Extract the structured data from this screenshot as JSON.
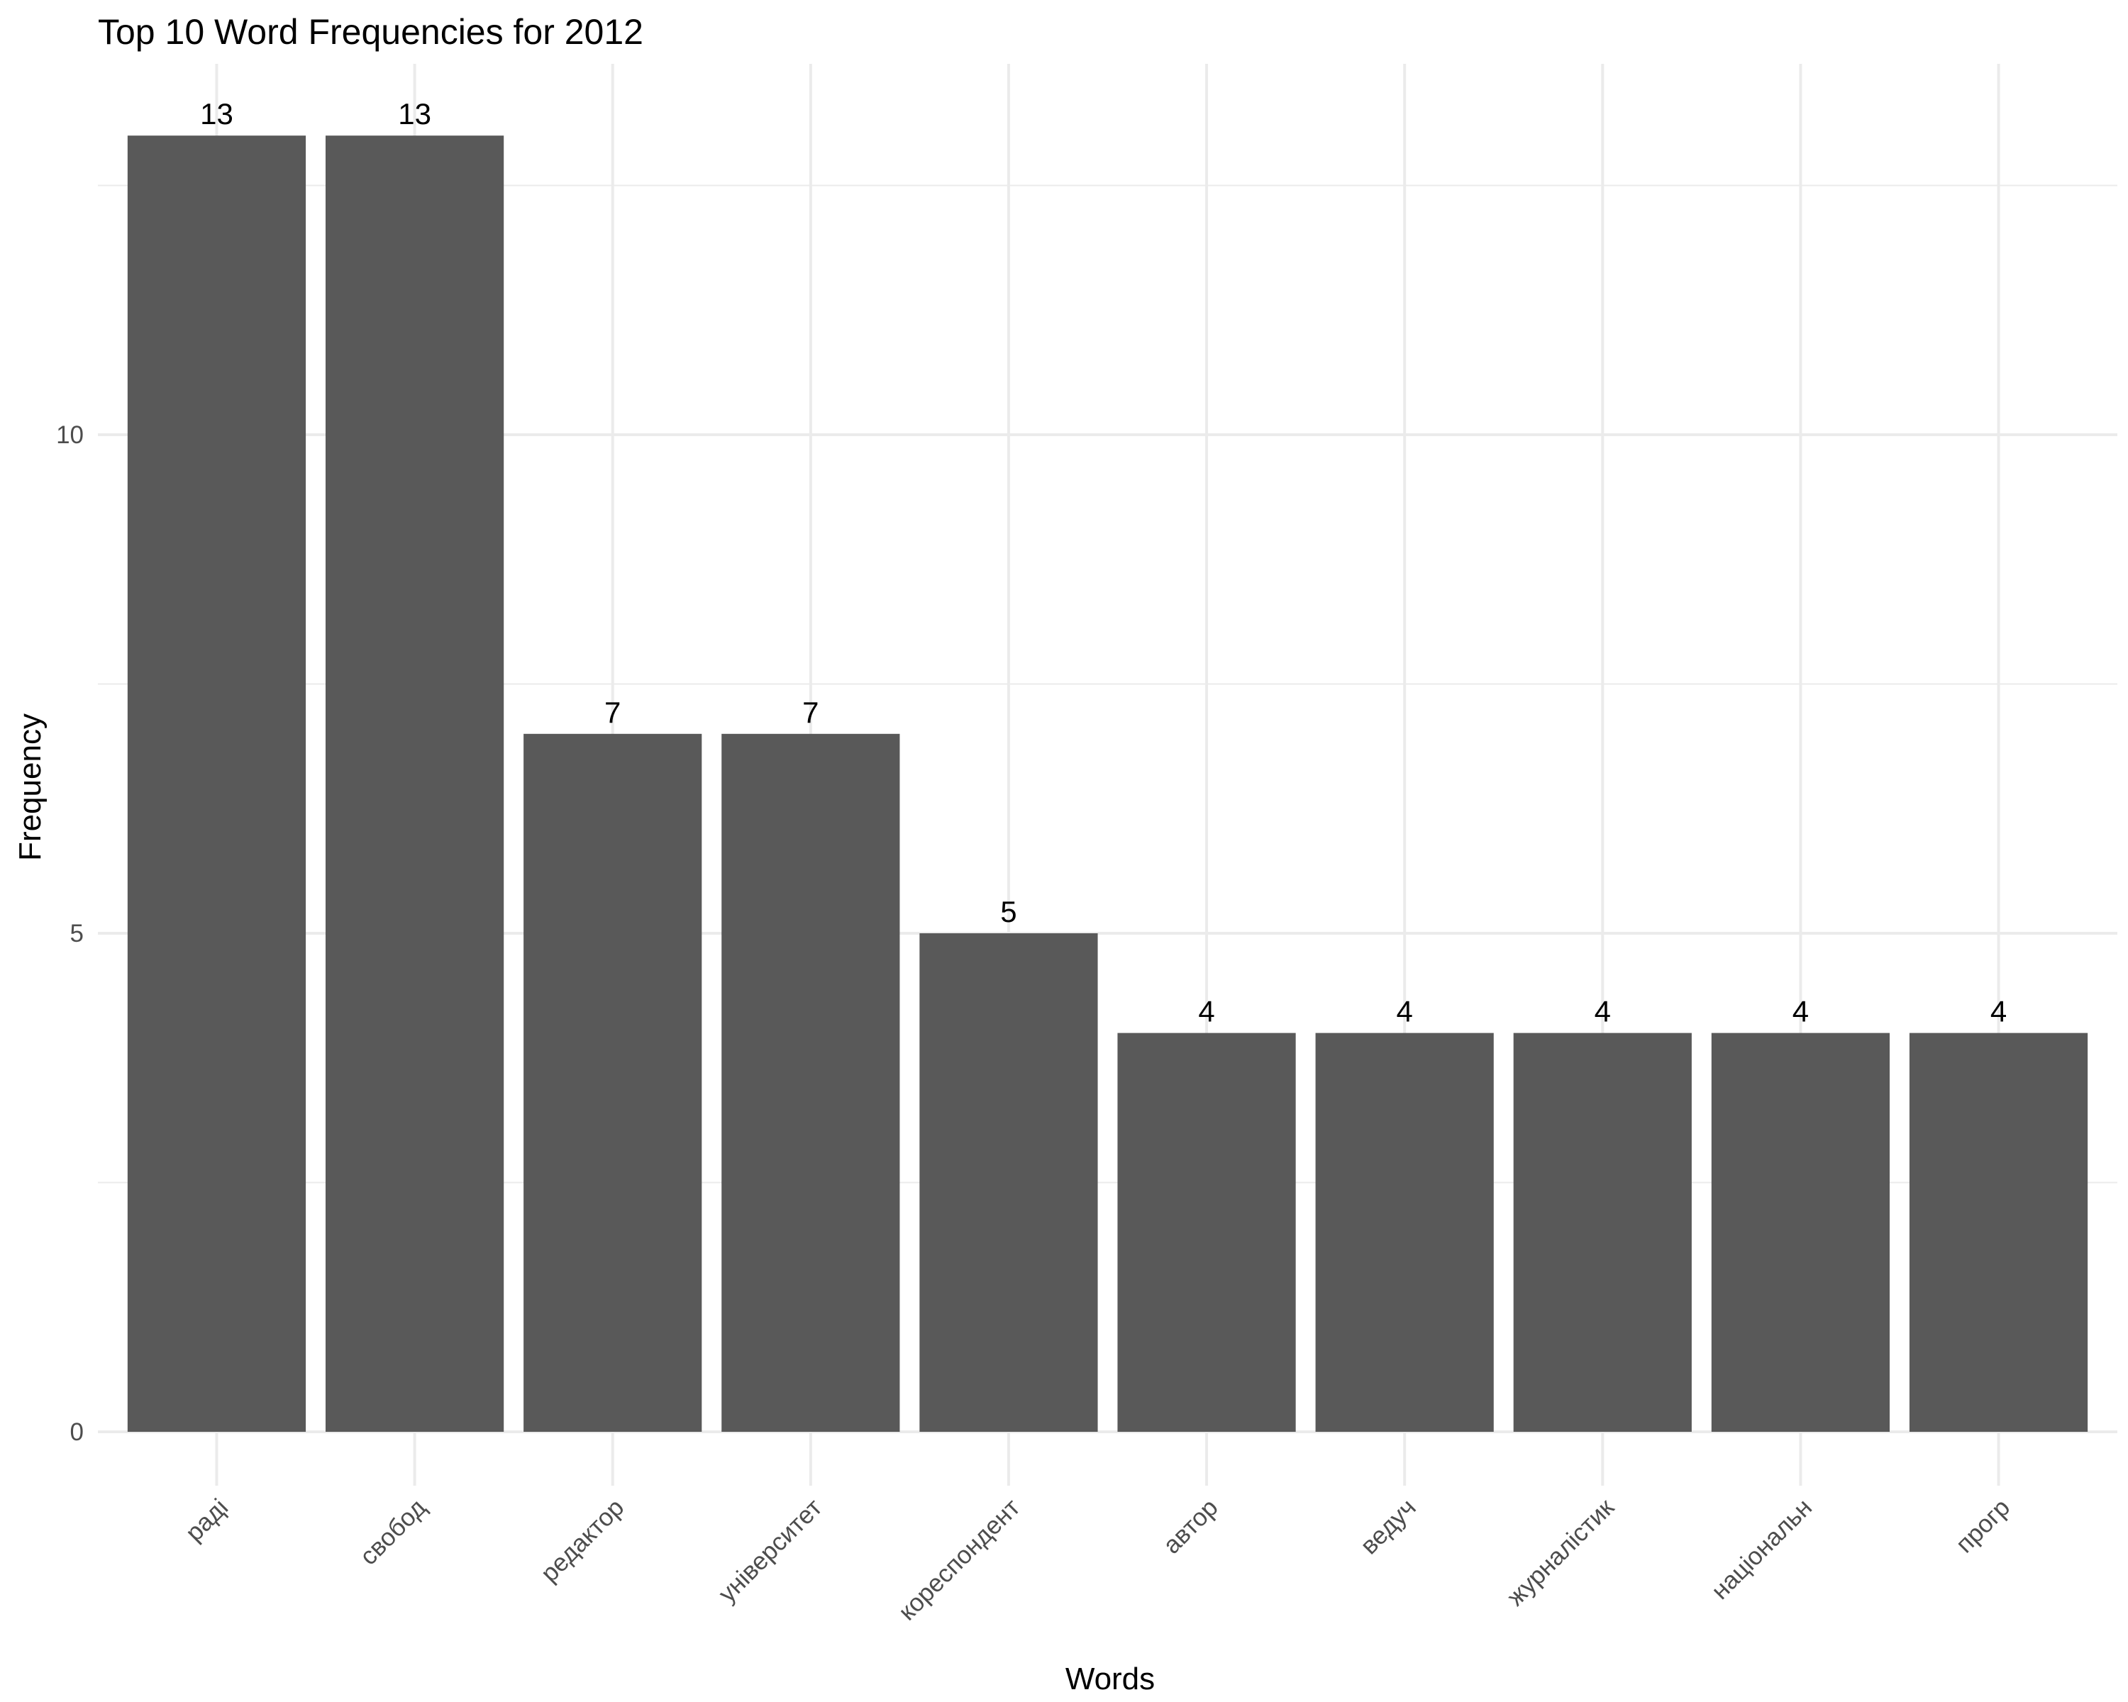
{
  "chart_data": {
    "type": "bar",
    "title": "Top 10 Word Frequencies for 2012",
    "xlabel": "Words",
    "ylabel": "Frequency",
    "categories": [
      "раді",
      "свобод",
      "редактор",
      "університет",
      "кореспондент",
      "автор",
      "ведуч",
      "журналістик",
      "національн",
      "прогр"
    ],
    "values": [
      13,
      13,
      7,
      7,
      5,
      4,
      4,
      4,
      4,
      4
    ],
    "value_labels": [
      "13",
      "13",
      "7",
      "7",
      "5",
      "4",
      "4",
      "4",
      "4",
      "4"
    ],
    "y_ticks": [
      0,
      5,
      10
    ],
    "y_tick_labels": [
      "0",
      "5",
      "10"
    ],
    "ylim": [
      0,
      13.65
    ],
    "grid": true,
    "legend": "none",
    "bar_color": "#595959",
    "grid_color": "#ebebeb"
  }
}
